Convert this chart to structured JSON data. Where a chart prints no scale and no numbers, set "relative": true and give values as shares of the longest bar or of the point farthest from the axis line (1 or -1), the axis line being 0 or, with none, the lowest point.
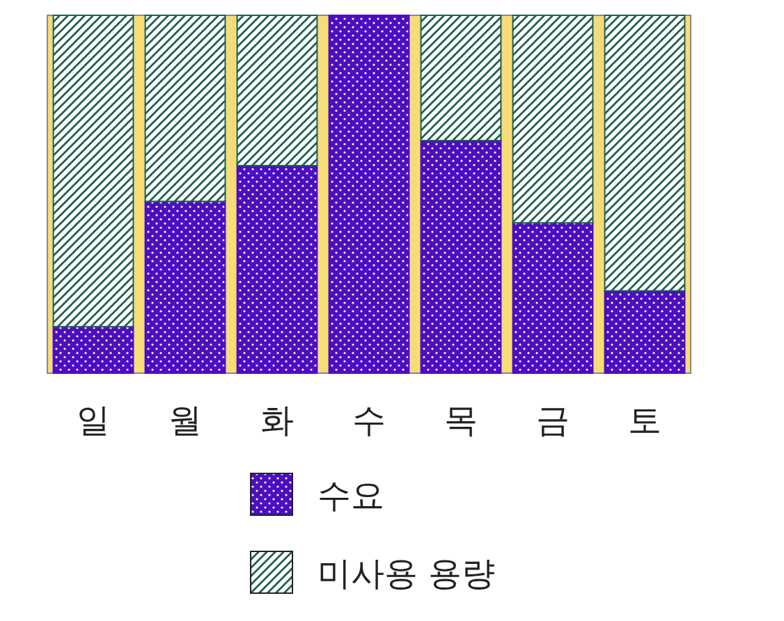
{
  "chart_data": {
    "type": "bar",
    "stacked": true,
    "relative": true,
    "legend": "bottom",
    "categories": [
      "일",
      "월",
      "화",
      "수",
      "목",
      "금",
      "토"
    ],
    "series": [
      {
        "name": "수요",
        "color": "#4b0fbf",
        "values": [
          0.13,
          0.48,
          0.58,
          1.0,
          0.65,
          0.42,
          0.23
        ]
      },
      {
        "name": "미사용 용량",
        "color": "#1f5f4f",
        "values": [
          0.87,
          0.52,
          0.42,
          0.0,
          0.35,
          0.58,
          0.77
        ]
      }
    ]
  }
}
